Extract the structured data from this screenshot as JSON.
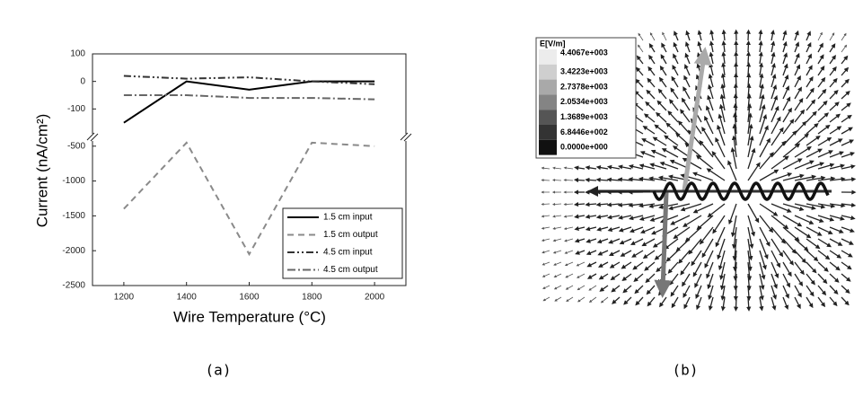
{
  "chart_data": [
    {
      "type": "line",
      "caption": "(a)",
      "x_label": "Wire Temperature (°C)",
      "y_label": "Current (nA/cm²)",
      "x": [
        1200,
        1400,
        1600,
        1800,
        2000
      ],
      "xlim": [
        1100,
        2100
      ],
      "xticks": [
        1200,
        1400,
        1600,
        1800,
        2000
      ],
      "ylim": [
        -2500,
        -400
      ],
      "yticks": [
        -2500,
        -2000,
        -1500,
        -1000,
        -500
      ],
      "y2lim": [
        -200,
        100
      ],
      "y2ticks": [
        -100,
        0,
        100
      ],
      "broken_axis": true,
      "legend": "lower right",
      "series": [
        {
          "name": "1.5 cm input",
          "color": "#000000",
          "dash": "solid",
          "axis": "y2",
          "values": [
            -150,
            0,
            -30,
            0,
            0
          ]
        },
        {
          "name": "1.5 cm output",
          "color": "#8a8a8a",
          "dash": "dashed",
          "values": [
            -1400,
            -450,
            -2050,
            -450,
            -500
          ]
        },
        {
          "name": "4.5 cm input",
          "color": "#333333",
          "dash": "dash-dot-dot",
          "axis": "y2",
          "values": [
            20,
            10,
            15,
            0,
            -10
          ]
        },
        {
          "name": "4.5 cm output",
          "color": "#666666",
          "dash": "dash-dot",
          "axis": "y2",
          "values": [
            -50,
            -50,
            -60,
            -60,
            -65
          ]
        }
      ]
    },
    {
      "type": "colorbar",
      "caption": "(b)",
      "title": "E[V/m]",
      "levels": [
        {
          "value": 4406.7,
          "label": "4.4067e+003"
        },
        {
          "value": 3422.3,
          "label": "3.4223e+003"
        },
        {
          "value": 2737.8,
          "label": "2.7378e+003"
        },
        {
          "value": 2053.4,
          "label": "2.0534e+003"
        },
        {
          "value": 1368.9,
          "label": "1.3689e+003"
        },
        {
          "value": 684.46,
          "label": "6.8446e+002"
        },
        {
          "value": 0,
          "label": "0.0000e+000"
        }
      ],
      "colors": [
        "#ececec",
        "#cfcfcf",
        "#a9a9a9",
        "#848484",
        "#555555",
        "#333333",
        "#111111"
      ]
    }
  ]
}
